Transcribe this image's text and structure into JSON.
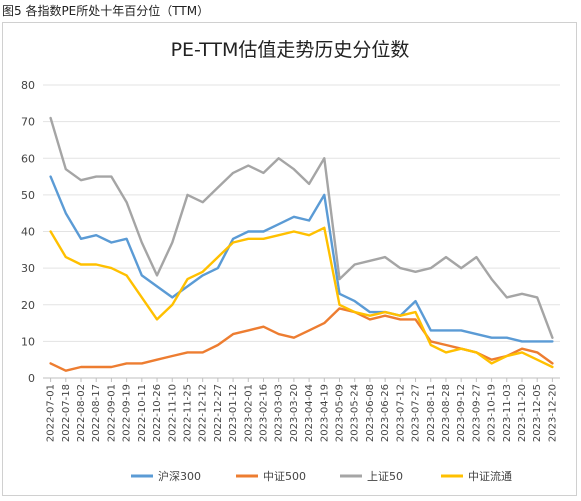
{
  "caption": "图5 各指数PE所处十年百分位（TTM）",
  "chart_data": {
    "type": "line",
    "title": "PE-TTM估值走势历史分位数",
    "xlabel": "",
    "ylabel": "",
    "ylim": [
      0,
      80
    ],
    "yticks": [
      0,
      10,
      20,
      30,
      40,
      50,
      60,
      70,
      80
    ],
    "grid": "horizontal",
    "legend": "bottom",
    "x": [
      "2022-07-01",
      "2022-07-18",
      "2022-08-02",
      "2022-08-17",
      "2022-09-01",
      "2022-09-19",
      "2022-10-11",
      "2022-10-26",
      "2022-11-10",
      "2022-11-25",
      "2022-12-12",
      "2022-12-27",
      "2023-01-12",
      "2023-02-01",
      "2023-02-16",
      "2023-03-03",
      "2023-03-20",
      "2023-04-04",
      "2023-04-19",
      "2023-05-09",
      "2023-05-24",
      "2023-06-08",
      "2023-06-26",
      "2023-07-12",
      "2023-07-27",
      "2023-08-11",
      "2023-08-28",
      "2023-09-12",
      "2023-09-27",
      "2023-10-19",
      "2023-11-03",
      "2023-11-20",
      "2023-12-05",
      "2023-12-20"
    ],
    "series": [
      {
        "name": "沪深300",
        "color": "#5b9bd5",
        "values": [
          55,
          45,
          38,
          39,
          37,
          38,
          28,
          25,
          22,
          25,
          28,
          30,
          38,
          40,
          40,
          42,
          44,
          43,
          50,
          23,
          21,
          18,
          18,
          17,
          21,
          13,
          13,
          13,
          12,
          11,
          11,
          10,
          10,
          10
        ]
      },
      {
        "name": "中证500",
        "color": "#ed7d31",
        "values": [
          4,
          2,
          3,
          3,
          3,
          4,
          4,
          5,
          6,
          7,
          7,
          9,
          12,
          13,
          14,
          12,
          11,
          13,
          15,
          19,
          18,
          16,
          17,
          16,
          16,
          10,
          9,
          8,
          7,
          5,
          6,
          8,
          7,
          4
        ]
      },
      {
        "name": "上证50",
        "color": "#a5a5a5",
        "values": [
          71,
          57,
          54,
          55,
          55,
          48,
          37,
          28,
          37,
          50,
          48,
          52,
          56,
          58,
          56,
          60,
          57,
          53,
          60,
          27,
          31,
          32,
          33,
          30,
          29,
          30,
          33,
          30,
          33,
          27,
          22,
          23,
          22,
          11
        ]
      },
      {
        "name": "中证流通",
        "color": "#ffc000",
        "values": [
          40,
          33,
          31,
          31,
          30,
          28,
          22,
          16,
          20,
          27,
          29,
          33,
          37,
          38,
          38,
          39,
          40,
          39,
          41,
          20,
          18,
          17,
          18,
          17,
          18,
          9,
          7,
          8,
          7,
          4,
          6,
          7,
          5,
          3
        ]
      }
    ]
  }
}
